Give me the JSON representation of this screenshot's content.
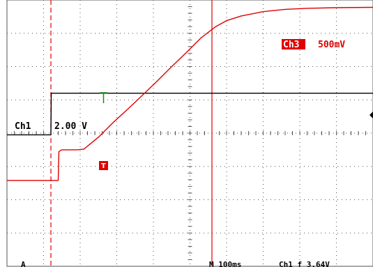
{
  "chart_data": {
    "type": "line",
    "title": "",
    "xlabel": "",
    "ylabel": "",
    "divisions": {
      "x": 10,
      "y": 8
    },
    "grid": true,
    "xlim": [
      0,
      10
    ],
    "ylim": [
      -4,
      4
    ],
    "colors": {
      "ch1": "#000000",
      "ch3": "#e00000",
      "grid": "#555555",
      "status": "#000000"
    },
    "channels": [
      {
        "label": "Ch1",
        "scale": "2.00 V"
      },
      {
        "label": "Ch3",
        "scale": "500mV"
      }
    ],
    "series": [
      {
        "name": "Ch1",
        "x": [
          0,
          1.2,
          1.21,
          10
        ],
        "y": [
          -0.05,
          -0.05,
          1.2,
          1.2
        ]
      },
      {
        "name": "Ch3",
        "x": [
          0,
          1.2,
          1.4,
          1.42,
          1.5,
          1.9,
          2.1,
          2.5,
          2.9,
          3.3,
          3.7,
          4.1,
          4.5,
          4.9,
          5.3,
          5.7,
          6.0,
          6.4,
          7.0,
          7.6,
          8.2,
          9.0,
          10
        ],
        "y": [
          -1.42,
          -1.42,
          -1.42,
          -0.55,
          -0.5,
          -0.5,
          -0.48,
          -0.12,
          0.32,
          0.72,
          1.14,
          1.56,
          2.0,
          2.42,
          2.86,
          3.2,
          3.38,
          3.52,
          3.65,
          3.72,
          3.75,
          3.77,
          3.78
        ]
      }
    ],
    "cursors": [
      {
        "name": "trigger-cursor",
        "x": 1.2,
        "style": "dashed"
      },
      {
        "name": "measurement-cursor",
        "x": 5.6,
        "style": "solid"
      }
    ],
    "markers": {
      "trigger": "T"
    },
    "status_bar": {
      "left": "A",
      "middle": "M 100ms",
      "right": "Ch1 f 3.64V"
    }
  }
}
